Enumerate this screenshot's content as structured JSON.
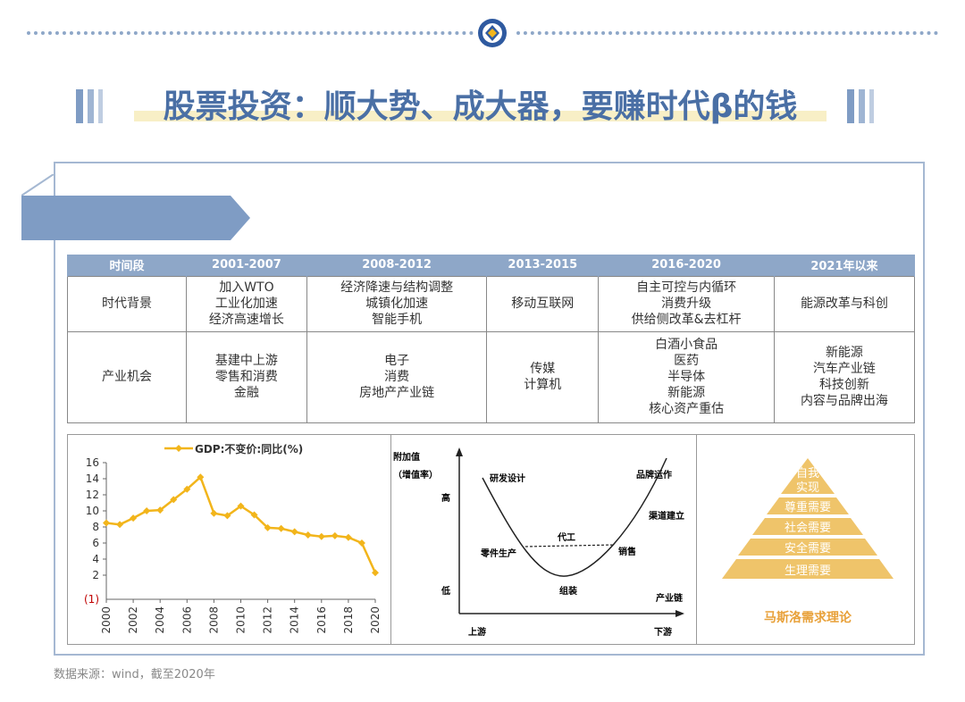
{
  "title": "股票投资：顺大势、成大器，要赚时代β的钱",
  "colors": {
    "accent": "#7f9cc4",
    "title": "#4a6fa5",
    "header": "#8ea7c8",
    "gold": "#f2b51b",
    "pyramid": "#efc46a"
  },
  "table": {
    "headers": [
      "时间段",
      "2001-2007",
      "2008-2012",
      "2013-2015",
      "2016-2020",
      "2021年以来"
    ],
    "rows": [
      {
        "label": "时代背景",
        "cells": [
          [
            "加入WTO",
            "工业化加速",
            "经济高速增长"
          ],
          [
            "经济降速与结构调整",
            "城镇化加速",
            "智能手机"
          ],
          [
            "移动互联网"
          ],
          [
            "自主可控与内循环",
            "消费升级",
            "供给侧改革&去杠杆"
          ],
          [
            "能源改革与科创"
          ]
        ]
      },
      {
        "label": "产业机会",
        "cells": [
          [
            "基建中上游",
            "零售和消费",
            "金融"
          ],
          [
            "电子",
            "消费",
            "房地产产业链"
          ],
          [
            "传媒",
            "计算机"
          ],
          [
            "白酒小食品",
            "医药",
            "半导体",
            "新能源",
            "核心资产重估"
          ],
          [
            "新能源",
            "汽车产业链",
            "科技创新",
            "内容与品牌出海"
          ]
        ]
      }
    ]
  },
  "chart_data": {
    "type": "line",
    "title": "",
    "legend": "GDP:不变价:同比(%)",
    "x": [
      2000,
      2001,
      2002,
      2003,
      2004,
      2005,
      2006,
      2007,
      2008,
      2009,
      2010,
      2011,
      2012,
      2013,
      2014,
      2015,
      2016,
      2017,
      2018,
      2019,
      2020
    ],
    "values": [
      8.5,
      8.3,
      9.1,
      10.0,
      10.1,
      11.4,
      12.7,
      14.2,
      9.7,
      9.4,
      10.6,
      9.5,
      7.9,
      7.8,
      7.4,
      7.0,
      6.8,
      6.9,
      6.7,
      6.0,
      2.3
    ],
    "x_ticks": [
      2000,
      2002,
      2004,
      2006,
      2008,
      2010,
      2012,
      2014,
      2016,
      2018,
      2020
    ],
    "y_ticks": [
      16,
      14,
      12,
      10,
      8,
      6,
      4,
      2
    ],
    "y_extra_tick": "(1)",
    "ylim": [
      -1,
      16
    ],
    "legend_position": "top",
    "color": "#f2b51b"
  },
  "smile": {
    "y_axis_label_1": "附加值",
    "y_axis_label_2": "（增值率）",
    "high": "高",
    "low": "低",
    "x_axis_label": "产业链",
    "upstream": "上游",
    "downstream": "下游",
    "labels": {
      "rnd": "研发设计",
      "brand": "品牌运作",
      "channel": "渠道建立",
      "oem": "代工",
      "parts": "零件生产",
      "sales": "销售",
      "assembly": "组装"
    }
  },
  "pyramid": {
    "levels": [
      "自我实现",
      "尊重需要",
      "社会需要",
      "安全需要",
      "生理需要"
    ],
    "top_line1": "自我",
    "top_line2": "实现",
    "caption": "马斯洛需求理论"
  },
  "source": "数据来源：wind，截至2020年"
}
